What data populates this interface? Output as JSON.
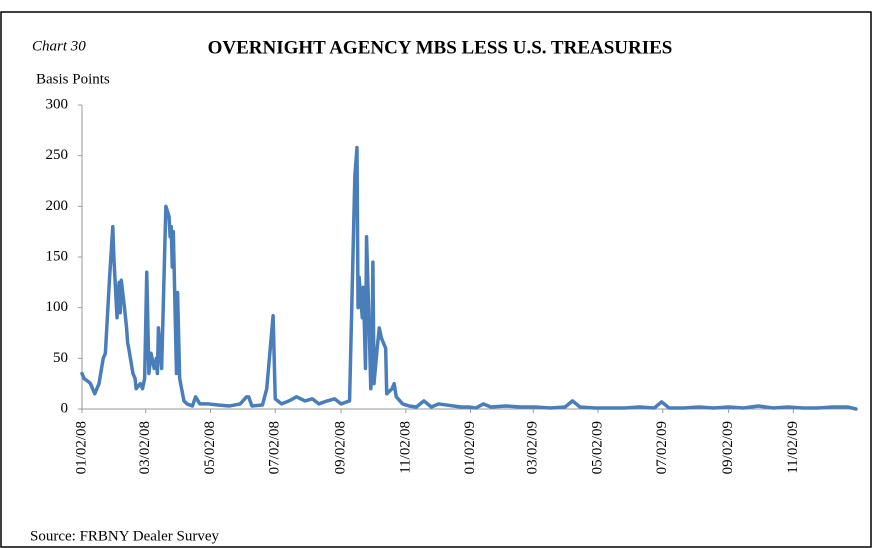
{
  "chart_data": {
    "type": "line",
    "label": "Chart 30",
    "title": "OVERNIGHT AGENCY MBS LESS U.S. TREASURIES",
    "y_label": "Basis Points",
    "source": "Source: FRBNY Dealer Survey",
    "x": [
      "01/02/08",
      "01/04/08",
      "01/08/08",
      "01/10/08",
      "01/14/08",
      "01/16/08",
      "01/18/08",
      "01/22/08",
      "01/24/08",
      "01/28/08",
      "01/31/08",
      "02/01/08",
      "02/04/08",
      "02/05/08",
      "02/06/08",
      "02/07/08",
      "02/08/08",
      "02/11/08",
      "02/13/08",
      "02/14/08",
      "02/15/08",
      "02/19/08",
      "02/21/08",
      "02/22/08",
      "02/26/08",
      "02/28/08",
      "03/01/08",
      "03/03/08",
      "03/05/08",
      "03/07/08",
      "03/10/08",
      "03/12/08",
      "03/13/08",
      "03/14/08",
      "03/17/08",
      "03/21/08",
      "03/24/08",
      "03/25/08",
      "03/26/08",
      "03/27/08",
      "03/28/08",
      "03/31/08",
      "04/01/08",
      "04/03/08",
      "04/07/08",
      "04/10/08",
      "04/15/08",
      "04/18/08",
      "04/22/08",
      "04/30/08",
      "05/09/08",
      "05/20/08",
      "05/30/08",
      "06/05/08",
      "06/07/08",
      "06/10/08",
      "06/20/08",
      "06/24/08",
      "06/30/08",
      "07/02/08",
      "07/08/08",
      "07/15/08",
      "07/22/08",
      "07/30/08",
      "08/06/08",
      "08/12/08",
      "08/20/08",
      "08/27/08",
      "09/02/08",
      "09/10/08",
      "09/15/08",
      "09/17/08",
      "09/18/08",
      "09/19/08",
      "09/22/08",
      "09/23/08",
      "09/25/08",
      "09/26/08",
      "09/29/08",
      "09/30/08",
      "10/01/08",
      "10/02/08",
      "10/03/08",
      "10/06/08",
      "10/08/08",
      "10/10/08",
      "10/14/08",
      "10/15/08",
      "10/20/08",
      "10/22/08",
      "10/24/08",
      "10/30/08",
      "11/05/08",
      "11/12/08",
      "11/19/08",
      "11/26/08",
      "12/03/08",
      "12/10/08",
      "12/17/08",
      "12/24/08",
      "12/31/08",
      "01/07/09",
      "01/14/09",
      "01/21/09",
      "02/04/09",
      "02/18/09",
      "03/04/09",
      "03/18/09",
      "04/01/09",
      "04/08/09",
      "04/15/09",
      "04/29/09",
      "05/13/09",
      "05/27/09",
      "06/10/09",
      "06/24/09",
      "07/01/09",
      "07/08/09",
      "07/22/09",
      "08/05/09",
      "08/19/09",
      "09/02/09",
      "09/16/09",
      "09/30/09",
      "10/14/09",
      "10/28/09",
      "11/11/09",
      "11/25/09",
      "12/09/09",
      "12/23/09",
      "12/31/09"
    ],
    "series": [
      {
        "name": "Overnight agency MBS less U.S. Treasuries",
        "color": "#4a7ebb",
        "values": [
          35,
          30,
          27,
          25,
          15,
          20,
          25,
          50,
          55,
          130,
          180,
          150,
          90,
          110,
          125,
          95,
          127,
          100,
          80,
          65,
          60,
          35,
          30,
          20,
          25,
          20,
          30,
          135,
          35,
          55,
          40,
          50,
          35,
          80,
          40,
          200,
          190,
          170,
          180,
          140,
          175,
          35,
          115,
          30,
          8,
          5,
          3,
          12,
          5,
          5,
          4,
          3,
          5,
          12,
          12,
          3,
          4,
          20,
          92,
          10,
          5,
          8,
          12,
          8,
          10,
          5,
          8,
          10,
          5,
          8,
          230,
          258,
          100,
          130,
          90,
          120,
          40,
          170,
          60,
          20,
          40,
          145,
          25,
          60,
          80,
          70,
          60,
          15,
          20,
          25,
          12,
          5,
          3,
          2,
          8,
          2,
          5,
          4,
          3,
          2,
          2,
          1,
          5,
          2,
          3,
          2,
          2,
          1,
          2,
          8,
          2,
          1,
          1,
          1,
          2,
          1,
          7,
          1,
          1,
          2,
          1,
          2,
          1,
          3,
          1,
          2,
          1,
          1,
          2,
          2,
          0
        ]
      }
    ],
    "xlim": [
      "01/02/08",
      "12/31/09"
    ],
    "xticks": [
      "01/02/08",
      "03/02/08",
      "05/02/08",
      "07/02/08",
      "09/02/08",
      "11/02/08",
      "01/02/09",
      "03/02/09",
      "05/02/09",
      "07/02/09",
      "09/02/09",
      "11/02/09"
    ],
    "ylim": [
      0,
      300
    ],
    "yticks": [
      0,
      50,
      100,
      150,
      200,
      250,
      300
    ]
  }
}
